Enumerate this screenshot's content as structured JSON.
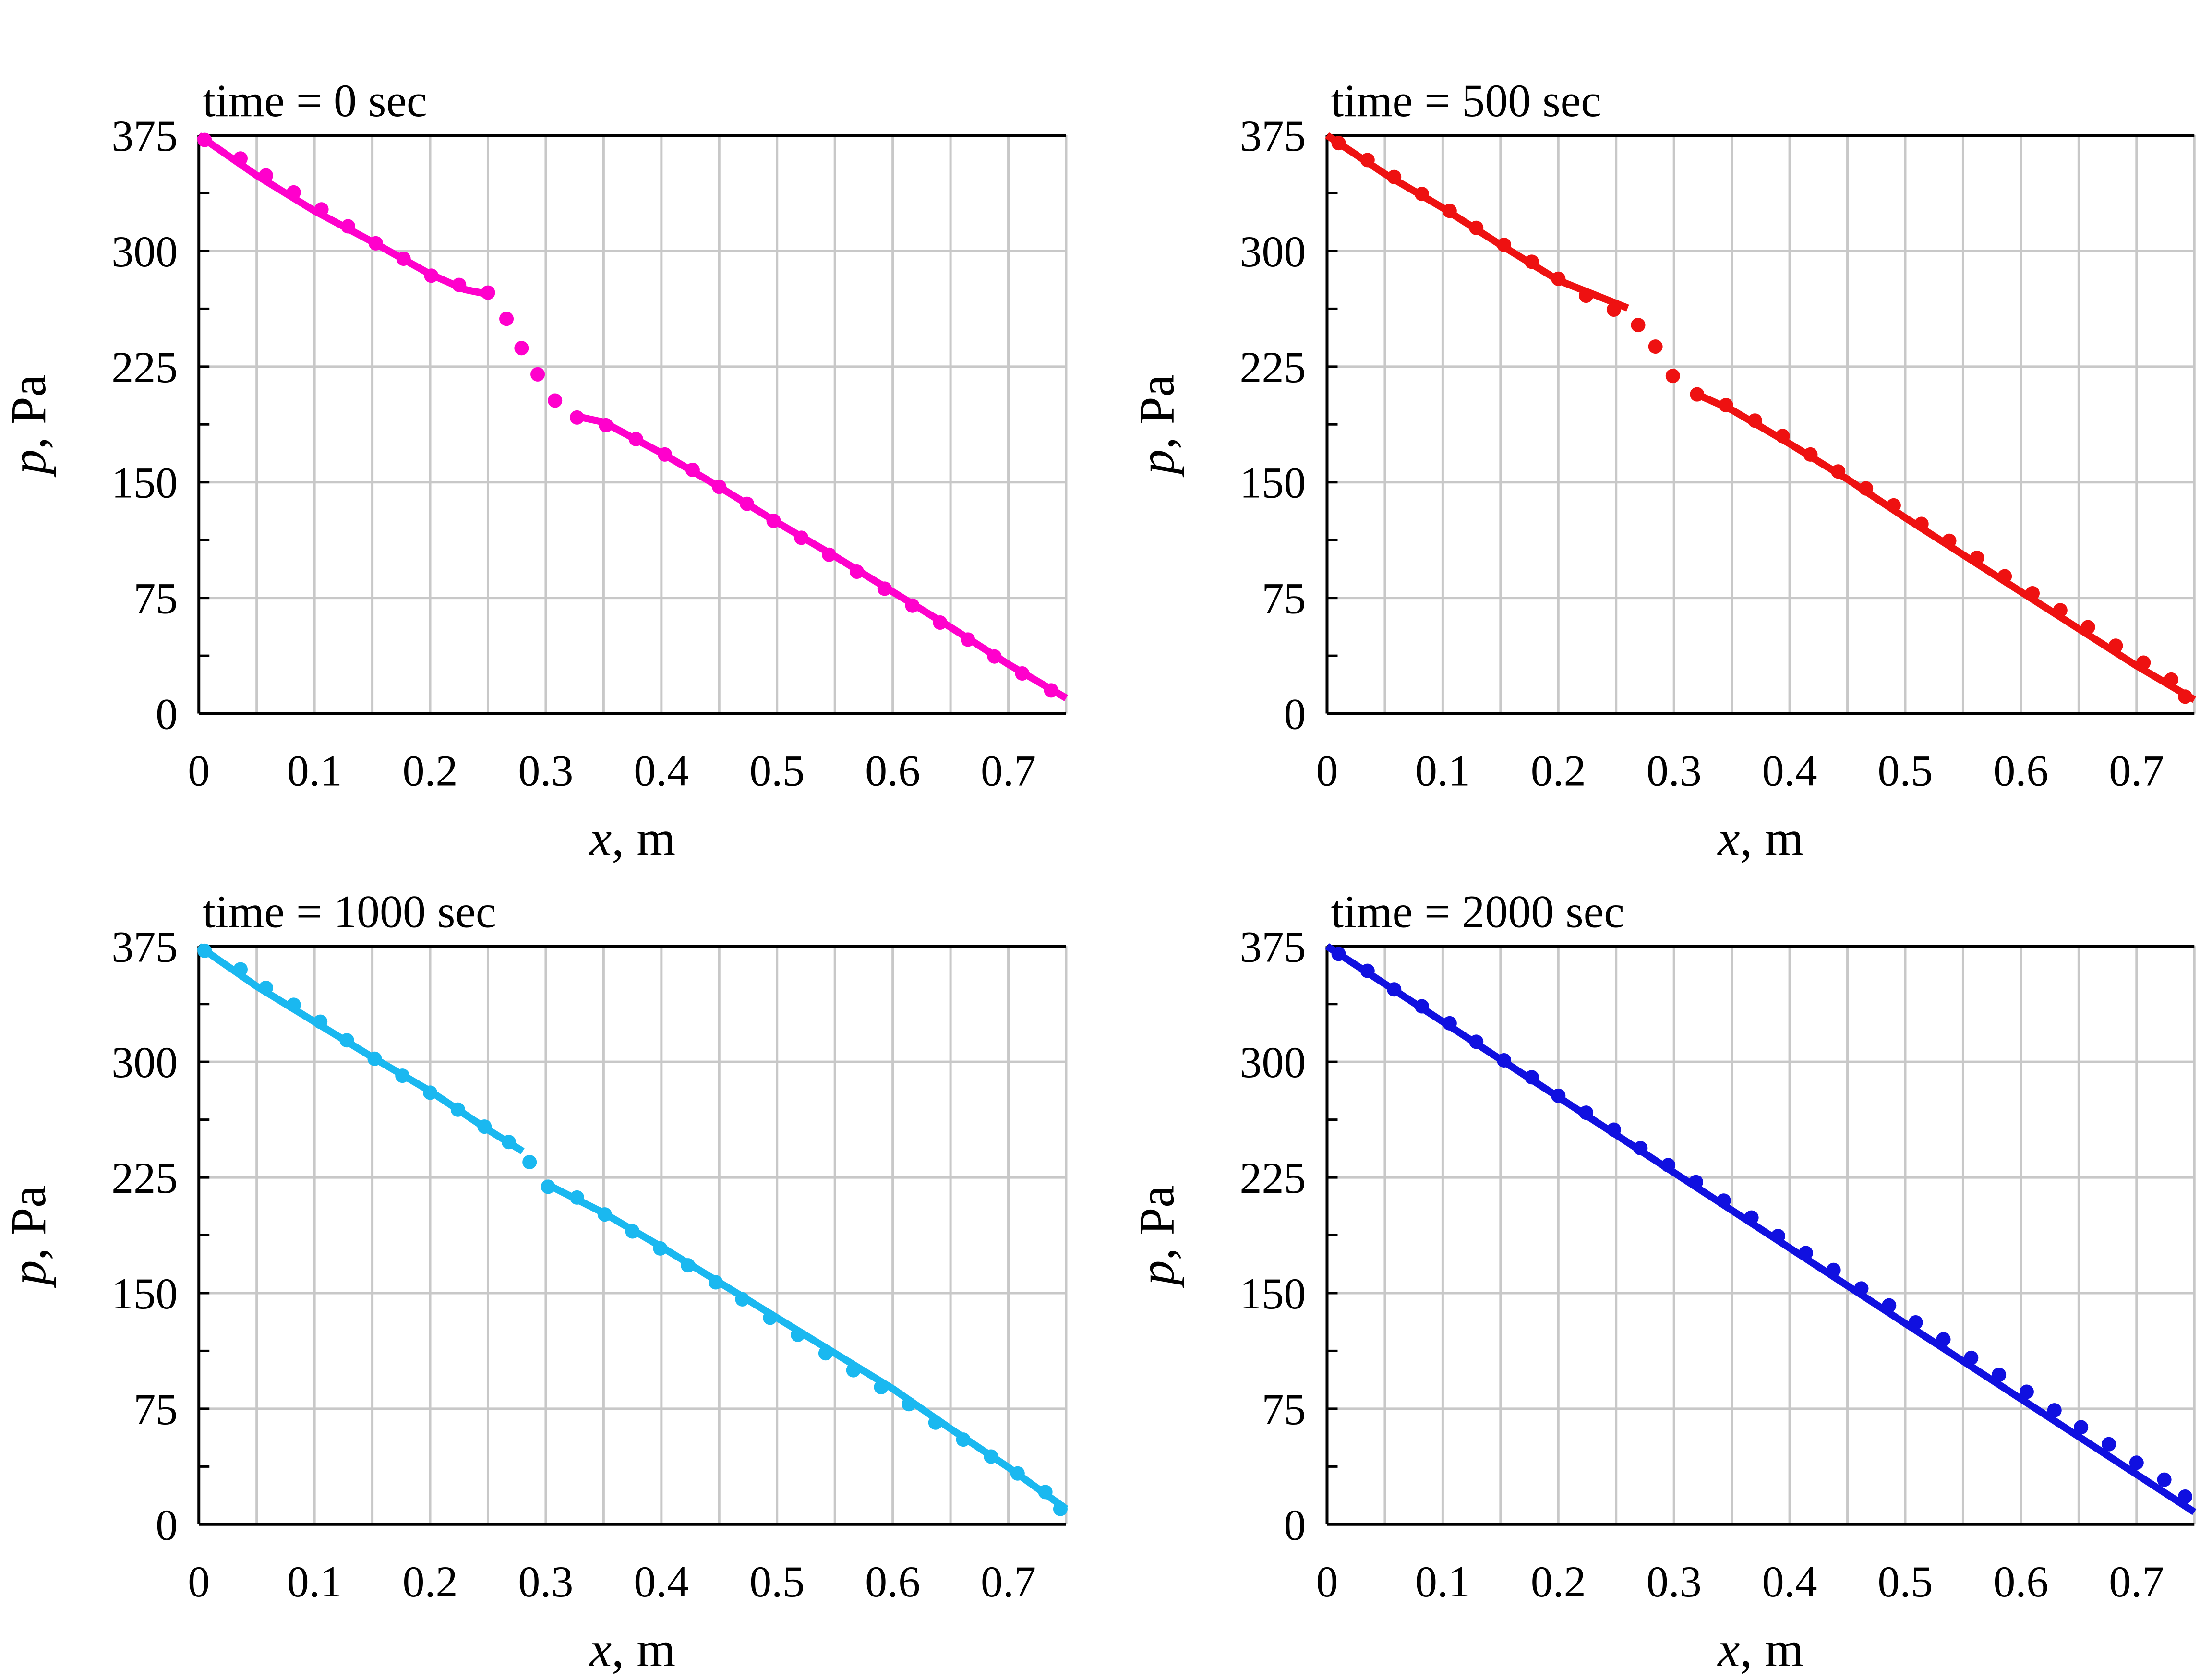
{
  "chart_data": [
    {
      "type": "line",
      "title": "time = 0 sec",
      "xlabel_var": "x",
      "xlabel_unit": ", m",
      "ylabel_var": "p",
      "ylabel_unit": ", Pa",
      "xlim": [
        0,
        0.75
      ],
      "ylim": [
        0,
        375
      ],
      "xticks": [
        0,
        0.1,
        0.2,
        0.3,
        0.4,
        0.5,
        0.6,
        0.7
      ],
      "xtick_labels": [
        "0",
        "0.1",
        "0.2",
        "0.3",
        "0.4",
        "0.5",
        "0.6",
        "0.7"
      ],
      "yticks": [
        0,
        75,
        150,
        225,
        300,
        375
      ],
      "ytick_labels": [
        "0",
        "75",
        "150",
        "225",
        "300",
        "375"
      ],
      "color": "#ff00cc",
      "grid": true,
      "series": [
        {
          "name": "line segment 1",
          "kind": "line",
          "x": [
            0,
            0.05,
            0.1,
            0.15,
            0.2,
            0.23,
            0.25
          ],
          "y": [
            375,
            349,
            326,
            306,
            285,
            275,
            272
          ]
        },
        {
          "name": "line segment 2",
          "kind": "line",
          "x": [
            0.325,
            0.35,
            0.4,
            0.45,
            0.5,
            0.55,
            0.6,
            0.65,
            0.7,
            0.75
          ],
          "y": [
            193,
            189,
            169,
            147,
            124,
            102,
            79,
            56,
            32,
            10
          ]
        },
        {
          "name": "points",
          "kind": "scatter",
          "x": [
            0.005,
            0.036,
            0.058,
            0.082,
            0.106,
            0.129,
            0.153,
            0.177,
            0.201,
            0.225,
            0.25,
            0.266,
            0.279,
            0.293,
            0.308,
            0.327,
            0.352,
            0.378,
            0.403,
            0.427,
            0.45,
            0.474,
            0.497,
            0.521,
            0.545,
            0.569,
            0.593,
            0.617,
            0.641,
            0.665,
            0.688,
            0.712,
            0.737
          ],
          "y": [
            372,
            360,
            349,
            338,
            327,
            316,
            305,
            295,
            284,
            278,
            273,
            256,
            237,
            220,
            203,
            192,
            187,
            178,
            168,
            158,
            147,
            136,
            125,
            114,
            103,
            92,
            81,
            70,
            59,
            48,
            37,
            26,
            15
          ]
        }
      ]
    },
    {
      "type": "line",
      "title": "time = 500 sec",
      "xlabel_var": "x",
      "xlabel_unit": ", m",
      "ylabel_var": "p",
      "ylabel_unit": ", Pa",
      "xlim": [
        0,
        0.75
      ],
      "ylim": [
        0,
        375
      ],
      "xticks": [
        0,
        0.1,
        0.2,
        0.3,
        0.4,
        0.5,
        0.6,
        0.7
      ],
      "xtick_labels": [
        "0",
        "0.1",
        "0.2",
        "0.3",
        "0.4",
        "0.5",
        "0.6",
        "0.7"
      ],
      "yticks": [
        0,
        75,
        150,
        225,
        300,
        375
      ],
      "ytick_labels": [
        "0",
        "75",
        "150",
        "225",
        "300",
        "375"
      ],
      "color": "#ee1111",
      "grid": true,
      "series": [
        {
          "name": "line segment 1",
          "kind": "line",
          "x": [
            0,
            0.05,
            0.1,
            0.15,
            0.2,
            0.25,
            0.26
          ],
          "y": [
            375,
            350,
            328,
            304,
            281,
            266,
            263
          ]
        },
        {
          "name": "line segment 2",
          "kind": "line",
          "x": [
            0.32,
            0.35,
            0.4,
            0.45,
            0.5,
            0.55,
            0.6,
            0.65,
            0.7,
            0.75
          ],
          "y": [
            207,
            197,
            175,
            152,
            127,
            103,
            79,
            55,
            31,
            9
          ]
        },
        {
          "name": "points",
          "kind": "scatter",
          "x": [
            0.01,
            0.035,
            0.058,
            0.082,
            0.106,
            0.129,
            0.153,
            0.177,
            0.2,
            0.224,
            0.248,
            0.269,
            0.284,
            0.299,
            0.32,
            0.345,
            0.37,
            0.394,
            0.418,
            0.442,
            0.466,
            0.49,
            0.514,
            0.538,
            0.562,
            0.586,
            0.61,
            0.634,
            0.658,
            0.682,
            0.706,
            0.73,
            0.742
          ],
          "y": [
            370,
            359,
            348,
            337,
            326,
            315,
            304,
            293,
            282,
            271,
            262,
            252,
            238,
            219,
            207,
            200,
            190,
            180,
            168,
            157,
            146,
            135,
            123,
            112,
            101,
            89,
            78,
            67,
            56,
            44,
            33,
            22,
            11
          ]
        }
      ]
    },
    {
      "type": "line",
      "title": "time = 1000 sec",
      "xlabel_var": "x",
      "xlabel_unit": ", m",
      "ylabel_var": "p",
      "ylabel_unit": ", Pa",
      "xlim": [
        0,
        0.75
      ],
      "ylim": [
        0,
        375
      ],
      "xticks": [
        0,
        0.1,
        0.2,
        0.3,
        0.4,
        0.5,
        0.6,
        0.7
      ],
      "xtick_labels": [
        "0",
        "0.1",
        "0.2",
        "0.3",
        "0.4",
        "0.5",
        "0.6",
        "0.7"
      ],
      "yticks": [
        0,
        75,
        150,
        225,
        300,
        375
      ],
      "ytick_labels": [
        "0",
        "75",
        "150",
        "225",
        "300",
        "375"
      ],
      "color": "#1ab8f0",
      "grid": true,
      "series": [
        {
          "name": "line segment 1",
          "kind": "line",
          "x": [
            0,
            0.05,
            0.1,
            0.15,
            0.2,
            0.25,
            0.28
          ],
          "y": [
            375,
            349,
            326,
            303,
            281,
            256,
            242
          ]
        },
        {
          "name": "line segment 2",
          "kind": "line",
          "x": [
            0.3,
            0.35,
            0.4,
            0.45,
            0.5,
            0.55,
            0.6,
            0.65,
            0.7,
            0.75
          ],
          "y": [
            221,
            202,
            180,
            157,
            134,
            111,
            88,
            62,
            37,
            10
          ]
        },
        {
          "name": "points",
          "kind": "scatter",
          "x": [
            0.005,
            0.036,
            0.058,
            0.082,
            0.105,
            0.128,
            0.152,
            0.176,
            0.2,
            0.224,
            0.247,
            0.268,
            0.286,
            0.302,
            0.327,
            0.351,
            0.375,
            0.399,
            0.423,
            0.447,
            0.47,
            0.494,
            0.518,
            0.542,
            0.566,
            0.59,
            0.614,
            0.637,
            0.661,
            0.685,
            0.708,
            0.732,
            0.745
          ],
          "y": [
            372,
            360,
            348,
            337,
            326,
            314,
            302,
            291,
            280,
            269,
            258,
            248,
            235,
            219,
            212,
            201,
            190,
            179,
            168,
            157,
            146,
            134,
            123,
            111,
            100,
            89,
            78,
            66,
            55,
            44,
            33,
            21,
            10
          ]
        }
      ]
    },
    {
      "type": "line",
      "title": "time = 2000 sec",
      "xlabel_var": "x",
      "xlabel_unit": ", m",
      "ylabel_var": "p",
      "ylabel_unit": ", Pa",
      "xlim": [
        0,
        0.75
      ],
      "ylim": [
        0,
        375
      ],
      "xticks": [
        0,
        0.1,
        0.2,
        0.3,
        0.4,
        0.5,
        0.6,
        0.7
      ],
      "xtick_labels": [
        "0",
        "0.1",
        "0.2",
        "0.3",
        "0.4",
        "0.5",
        "0.6",
        "0.7"
      ],
      "yticks": [
        0,
        75,
        150,
        225,
        300,
        375
      ],
      "ytick_labels": [
        "0",
        "75",
        "150",
        "225",
        "300",
        "375"
      ],
      "color": "#1010e0",
      "grid": true,
      "series": [
        {
          "name": "line",
          "kind": "line",
          "x": [
            0,
            0.75
          ],
          "y": [
            375,
            8
          ]
        },
        {
          "name": "points",
          "kind": "scatter",
          "x": [
            0.01,
            0.035,
            0.058,
            0.082,
            0.106,
            0.129,
            0.153,
            0.177,
            0.2,
            0.224,
            0.248,
            0.271,
            0.295,
            0.319,
            0.343,
            0.367,
            0.39,
            0.414,
            0.438,
            0.462,
            0.486,
            0.509,
            0.533,
            0.557,
            0.581,
            0.605,
            0.629,
            0.652,
            0.676,
            0.7,
            0.724,
            0.742
          ],
          "y": [
            370,
            359,
            347,
            336,
            325,
            313,
            301,
            290,
            278,
            267,
            256,
            244,
            233,
            222,
            210,
            199,
            187,
            176,
            165,
            153,
            142,
            131,
            120,
            108,
            97,
            86,
            74,
            63,
            52,
            40,
            29,
            18
          ]
        }
      ]
    }
  ]
}
